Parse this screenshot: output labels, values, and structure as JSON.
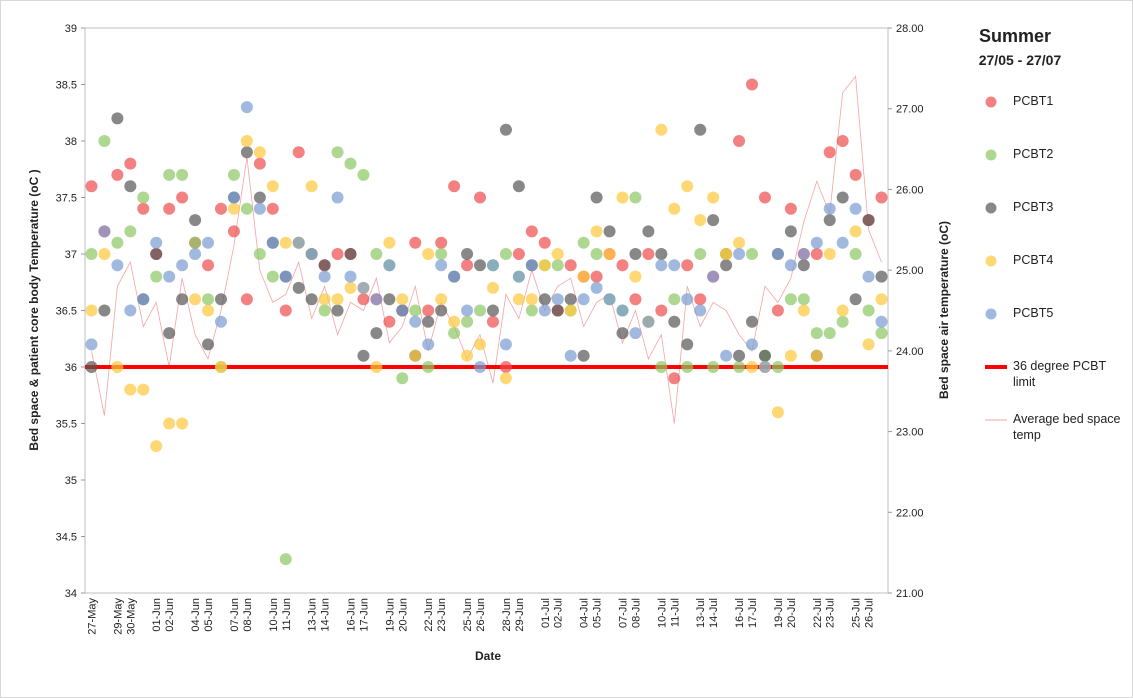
{
  "chart_data": {
    "type": "scatter",
    "title": "Summer",
    "subtitle": "27/05 - 27/07",
    "x_label": "Date",
    "y_label": "Bed space & patient core body Temperature (oC )",
    "y2_label": "Bed space air temperature (oC)",
    "categories": [
      "27-May",
      null,
      "29-May",
      "30-May",
      null,
      "01-Jun",
      "02-Jun",
      null,
      "04-Jun",
      "05-Jun",
      null,
      "07-Jun",
      "08-Jun",
      null,
      "10-Jun",
      "11-Jun",
      null,
      "13-Jun",
      "14-Jun",
      null,
      "16-Jun",
      "17-Jun",
      null,
      "19-Jun",
      "20-Jun",
      null,
      "22-Jun",
      "23-Jun",
      null,
      "25-Jun",
      "26-Jun",
      null,
      "28-Jun",
      "29-Jun",
      null,
      "01-Jul",
      "02-Jul",
      null,
      "04-Jul",
      "05-Jul",
      null,
      "07-Jul",
      "08-Jul",
      null,
      "10-Jul",
      "11-Jul",
      null,
      "13-Jul",
      "14-Jul",
      null,
      "16-Jul",
      "17-Jul",
      null,
      "19-Jul",
      "20-Jul",
      null,
      "22-Jul",
      "23-Jul",
      null,
      "25-Jul",
      "26-Jul",
      null
    ],
    "ylim": [
      34,
      39
    ],
    "yticks": [
      34,
      34.5,
      35,
      35.5,
      36,
      36.5,
      37,
      37.5,
      38,
      38.5,
      39
    ],
    "y2lim": [
      21,
      28
    ],
    "y2ticks": [
      {
        "value": 21,
        "label": "21.00"
      },
      {
        "value": 22,
        "label": "22.00"
      },
      {
        "value": 23,
        "label": "23.00"
      },
      {
        "value": 24,
        "label": "24.00"
      },
      {
        "value": 25,
        "label": "25.00"
      },
      {
        "value": 26,
        "label": "26.00"
      },
      {
        "value": 27,
        "label": "27.00"
      },
      {
        "value": 28,
        "label": "28.00"
      }
    ],
    "series": [
      {
        "name": "PCBT1",
        "color": "#ef4b4b",
        "values": [
          37.6,
          37.2,
          37.7,
          37.8,
          37.4,
          37.0,
          37.4,
          37.5,
          37.1,
          36.9,
          37.4,
          37.2,
          36.6,
          37.8,
          37.4,
          36.5,
          37.9,
          37.0,
          36.9,
          37.0,
          37.0,
          36.6,
          36.6,
          36.4,
          36.5,
          37.1,
          36.5,
          37.1,
          37.6,
          36.9,
          37.5,
          36.4,
          36.0,
          37.0,
          37.2,
          37.1,
          36.5,
          36.9,
          36.8,
          36.8,
          37.0,
          36.9,
          36.6,
          37.0,
          36.5,
          35.9,
          36.9,
          36.6,
          36.8,
          37.0,
          38.0,
          38.5,
          37.5,
          36.5,
          37.4,
          37.0,
          37.0,
          37.9,
          38.0,
          37.7,
          37.3,
          37.5
        ]
      },
      {
        "name": "PCBT2",
        "color": "#8cc864",
        "values": [
          37.0,
          38.0,
          37.1,
          37.2,
          37.5,
          36.8,
          37.7,
          37.7,
          37.1,
          36.6,
          36.0,
          37.7,
          37.4,
          37.0,
          36.8,
          34.3,
          37.1,
          37.0,
          36.5,
          37.9,
          37.8,
          37.7,
          37.0,
          36.9,
          35.9,
          36.5,
          36.0,
          37.0,
          36.3,
          36.4,
          36.5,
          36.9,
          37.0,
          36.8,
          36.5,
          36.9,
          36.9,
          36.5,
          37.1,
          37.0,
          36.6,
          36.5,
          37.5,
          36.4,
          36.0,
          36.6,
          36.0,
          37.0,
          36.0,
          37.0,
          36.0,
          37.0,
          36.1,
          36.0,
          36.6,
          36.6,
          36.3,
          36.3,
          36.4,
          37.0,
          36.5,
          36.3
        ]
      },
      {
        "name": "PCBT3",
        "color": "#555555",
        "values": [
          36.0,
          36.5,
          38.2,
          37.6,
          36.6,
          37.0,
          36.3,
          36.6,
          37.3,
          36.2,
          36.6,
          37.5,
          37.9,
          37.5,
          37.1,
          36.8,
          36.7,
          36.6,
          36.9,
          36.5,
          37.0,
          36.1,
          36.3,
          36.6,
          36.5,
          36.1,
          36.4,
          36.5,
          36.8,
          37.0,
          36.9,
          36.5,
          38.1,
          37.6,
          36.9,
          36.6,
          36.5,
          36.6,
          36.1,
          37.5,
          37.2,
          36.3,
          37.0,
          37.2,
          37.0,
          36.4,
          36.2,
          38.1,
          37.3,
          36.9,
          36.1,
          36.4,
          36.1,
          37.0,
          37.2,
          36.9,
          36.1,
          37.3,
          37.5,
          36.6,
          37.3,
          36.8
        ]
      },
      {
        "name": "PCBT4",
        "color": "#ffc83c",
        "values": [
          36.5,
          37.0,
          36.0,
          35.8,
          35.8,
          35.3,
          35.5,
          35.5,
          36.6,
          36.5,
          36.0,
          37.4,
          38.0,
          37.9,
          37.6,
          37.1,
          37.1,
          37.6,
          36.6,
          36.6,
          36.7,
          36.7,
          36.0,
          37.1,
          36.6,
          36.1,
          37.0,
          36.6,
          36.4,
          36.1,
          36.2,
          36.7,
          35.9,
          36.6,
          36.6,
          36.9,
          37.0,
          36.5,
          36.8,
          37.2,
          37.0,
          37.5,
          36.8,
          36.4,
          38.1,
          37.4,
          37.6,
          37.3,
          37.5,
          37.0,
          37.1,
          36.0,
          36.0,
          35.6,
          36.1,
          36.5,
          36.1,
          37.0,
          36.5,
          37.2,
          36.2,
          36.6
        ]
      },
      {
        "name": "PCBT5",
        "color": "#7b9bd2",
        "values": [
          36.2,
          37.2,
          36.9,
          36.5,
          36.6,
          37.1,
          36.8,
          36.9,
          37.0,
          37.1,
          36.4,
          37.5,
          38.3,
          37.4,
          37.1,
          36.8,
          37.1,
          37.0,
          36.8,
          37.5,
          36.8,
          36.7,
          36.6,
          36.9,
          36.5,
          36.4,
          36.2,
          36.9,
          36.8,
          36.5,
          36.0,
          36.9,
          36.2,
          36.8,
          36.9,
          36.5,
          36.6,
          36.1,
          36.6,
          36.7,
          36.6,
          36.5,
          36.3,
          36.4,
          36.9,
          36.9,
          36.6,
          36.5,
          36.8,
          36.1,
          37.0,
          36.2,
          36.0,
          37.0,
          36.9,
          37.0,
          37.1,
          37.4,
          37.1,
          37.4,
          36.8,
          36.4
        ]
      },
      {
        "name": "Average bed space temp",
        "color": "#f5a3a3",
        "axis": "y2",
        "values": [
          24.0,
          23.2,
          24.8,
          25.1,
          24.3,
          24.6,
          23.8,
          24.9,
          24.2,
          23.9,
          24.5,
          25.3,
          26.4,
          25.0,
          24.6,
          24.7,
          25.1,
          24.4,
          24.8,
          24.2,
          24.6,
          24.5,
          24.9,
          24.1,
          24.3,
          24.8,
          24.0,
          24.6,
          24.3,
          23.9,
          24.2,
          23.6,
          24.7,
          24.4,
          25.0,
          24.5,
          24.8,
          24.9,
          24.3,
          24.6,
          24.7,
          24.1,
          24.5,
          23.9,
          24.2,
          23.1,
          24.8,
          24.3,
          24.6,
          24.5,
          24.2,
          24.0,
          24.8,
          24.6,
          24.9,
          25.6,
          26.1,
          25.7,
          27.2,
          27.4,
          25.5,
          25.1
        ]
      }
    ],
    "reference_lines": [
      {
        "name": "36 degree PCBT limit",
        "value": 36,
        "color": "#ff0000"
      }
    ]
  }
}
